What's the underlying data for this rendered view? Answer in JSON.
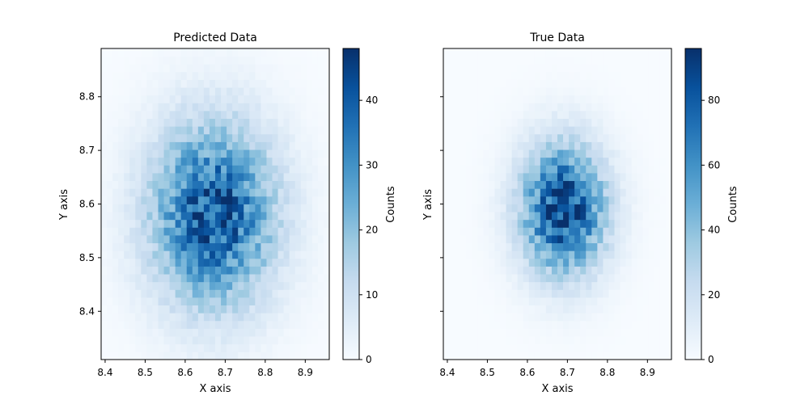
{
  "chart_data": [
    {
      "type": "heatmap",
      "title": "Predicted Data",
      "xlabel": "X axis",
      "ylabel": "Y axis",
      "xlim": [
        8.39,
        8.96
      ],
      "ylim": [
        8.31,
        8.89
      ],
      "x_ticks": [
        "8.4",
        "8.5",
        "8.6",
        "8.7",
        "8.8",
        "8.9"
      ],
      "y_ticks": [
        "8.4",
        "8.5",
        "8.6",
        "8.7",
        "8.8"
      ],
      "colormap": "Blues",
      "colorbar": {
        "label": "Counts",
        "range": [
          0,
          48
        ],
        "ticks": [
          "0",
          "10",
          "20",
          "30",
          "40"
        ]
      },
      "bins": [
        40,
        40
      ],
      "distribution": {
        "center_x": 8.67,
        "center_y": 8.58,
        "sigma_x": 0.11,
        "sigma_y": 0.12,
        "peak_count": 42,
        "max_count": 48
      }
    },
    {
      "type": "heatmap",
      "title": "True Data",
      "xlabel": "X axis",
      "ylabel": "Y axis",
      "xlim": [
        8.39,
        8.96
      ],
      "ylim": [
        8.31,
        8.89
      ],
      "x_ticks": [
        "8.4",
        "8.5",
        "8.6",
        "8.7",
        "8.8",
        "8.9"
      ],
      "y_ticks": [],
      "colormap": "Blues",
      "colorbar": {
        "label": "Counts",
        "range": [
          0,
          96
        ],
        "ticks": [
          "0",
          "20",
          "40",
          "60",
          "80"
        ]
      },
      "bins": [
        40,
        40
      ],
      "distribution": {
        "center_x": 8.69,
        "center_y": 8.59,
        "sigma_x": 0.075,
        "sigma_y": 0.085,
        "peak_count": 88,
        "max_count": 96
      }
    }
  ],
  "colors": {
    "blues": [
      "#f7fbff",
      "#deebf7",
      "#c6dbef",
      "#9ecae1",
      "#6baed6",
      "#4292c6",
      "#2171b5",
      "#08519c",
      "#08306b"
    ]
  }
}
